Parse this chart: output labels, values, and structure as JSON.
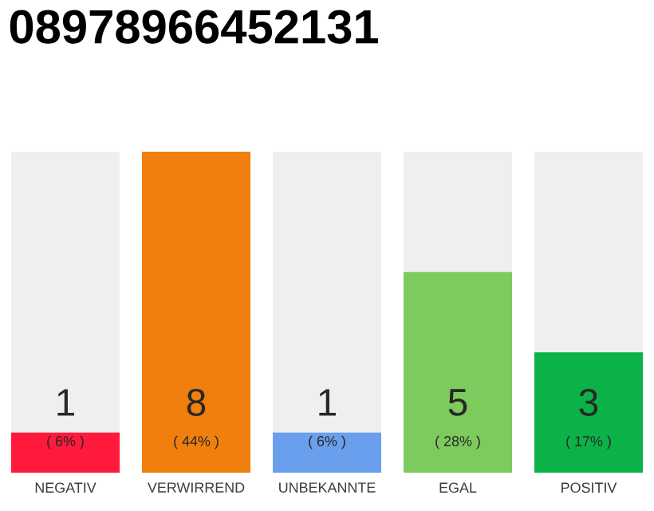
{
  "chart_data": {
    "type": "bar",
    "title": "08978966452131",
    "categories": [
      "NEGATIV",
      "VERWIRREND",
      "UNBEKANNTE",
      "EGAL",
      "POSITIV"
    ],
    "values": [
      1,
      8,
      1,
      5,
      3
    ],
    "colors": [
      "#ff1a3c",
      "#f07f0e",
      "#6a9fed",
      "#7dcb5d",
      "#0bb248"
    ],
    "data_labels": true,
    "annotations": [
      "( 6% )",
      "( 44% )",
      "( 6% )",
      "( 28% )",
      "( 17% )"
    ]
  }
}
